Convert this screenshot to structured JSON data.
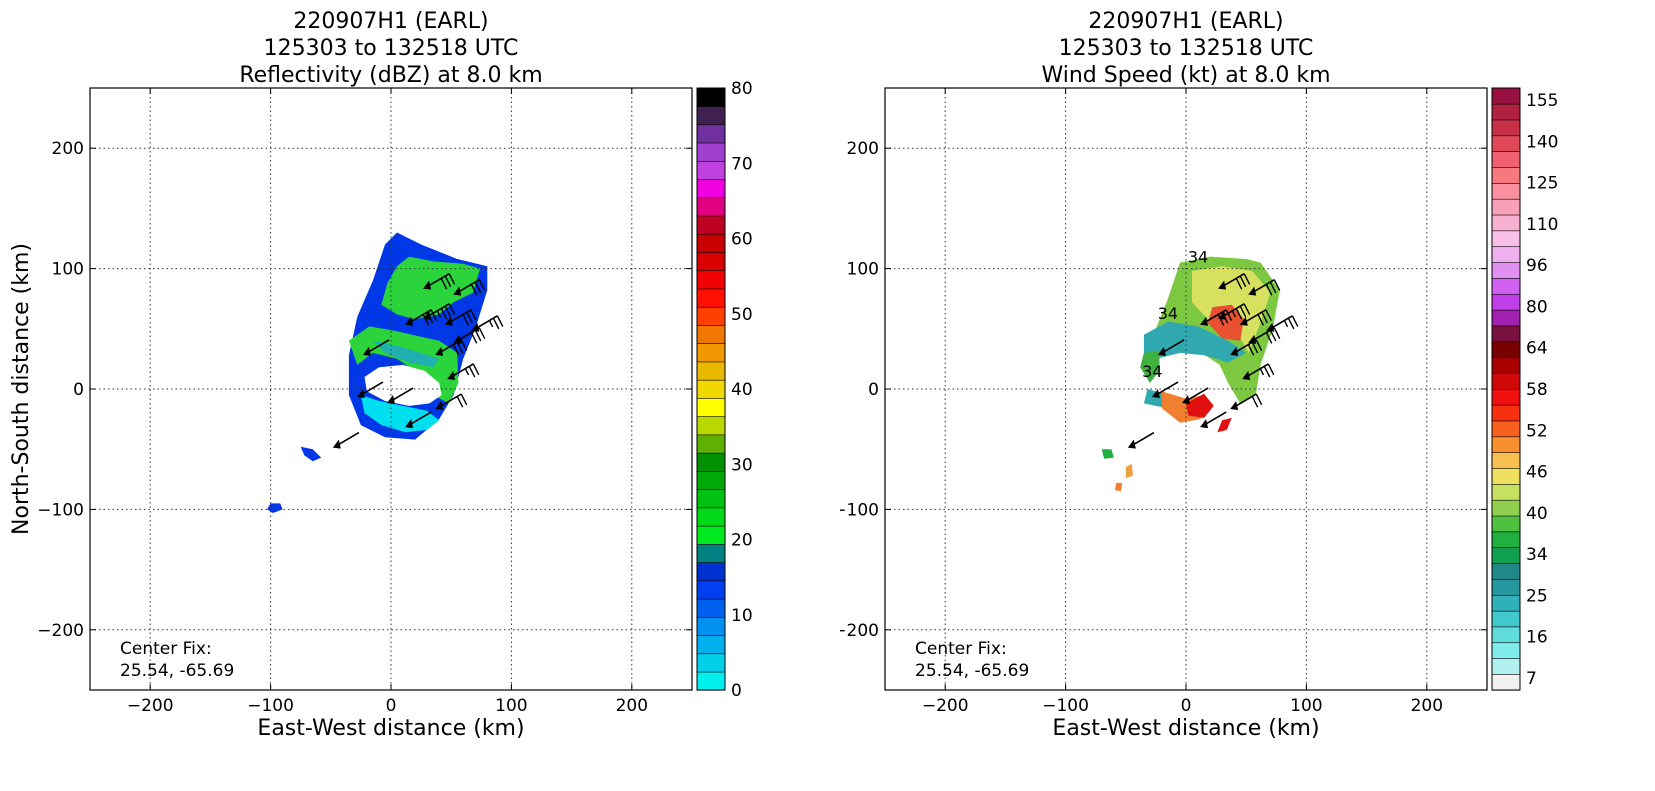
{
  "chart_data": [
    {
      "type": "heatmap",
      "title_lines": [
        "220907H1 (EARL)",
        "125303 to 132518 UTC",
        "Reflectivity (dBZ) at 8.0 km"
      ],
      "xlabel": "East-West distance (km)",
      "ylabel": "North-South distance (km)",
      "xlim": [
        -250,
        250
      ],
      "ylim": [
        -250,
        250
      ],
      "xticks": [
        -200,
        -100,
        0,
        100,
        200
      ],
      "yticks": [
        -200,
        -100,
        0,
        100,
        200
      ],
      "grid": true,
      "annotation_lines": [
        "Center Fix:",
        "25.54, -65.69"
      ],
      "colorbar": {
        "min": 0,
        "max": 80,
        "ticks": [
          0,
          10,
          20,
          30,
          40,
          50,
          60,
          70,
          80
        ],
        "colors": [
          "#00f0f0",
          "#00d0ea",
          "#00b0ee",
          "#0090ee",
          "#0060f0",
          "#0040f0",
          "#0030d0",
          "#008080",
          "#00ea20",
          "#00d818",
          "#00c010",
          "#00a808",
          "#009000",
          "#60b000",
          "#b8d800",
          "#ffff00",
          "#f0d800",
          "#e8b800",
          "#f09800",
          "#f07800",
          "#ff4000",
          "#ff1000",
          "#f00000",
          "#d80000",
          "#c80000",
          "#c00020",
          "#e00080",
          "#f000e0",
          "#c040e0",
          "#a040d0",
          "#7030a0",
          "#402050",
          "#000000"
        ]
      },
      "fields": [
        {
          "color": "#0038e8",
          "points": [
            [
              5,
              130
            ],
            [
              25,
              120
            ],
            [
              55,
              108
            ],
            [
              80,
              102
            ],
            [
              80,
              82
            ],
            [
              70,
              50
            ],
            [
              60,
              25
            ],
            [
              52,
              -5
            ],
            [
              40,
              -25
            ],
            [
              20,
              -42
            ],
            [
              -5,
              -40
            ],
            [
              -25,
              -30
            ],
            [
              -35,
              -5
            ],
            [
              -35,
              28
            ],
            [
              -28,
              60
            ],
            [
              -15,
              90
            ],
            [
              -5,
              120
            ]
          ]
        },
        {
          "color": "#2ad43a",
          "points": [
            [
              15,
              110
            ],
            [
              35,
              106
            ],
            [
              60,
              104
            ],
            [
              74,
              100
            ],
            [
              68,
              80
            ],
            [
              52,
              72
            ],
            [
              40,
              62
            ],
            [
              20,
              58
            ],
            [
              5,
              62
            ],
            [
              -8,
              70
            ],
            [
              -3,
              88
            ],
            [
              5,
              102
            ]
          ]
        },
        {
          "color": "#2ad43a",
          "points": [
            [
              -35,
              40
            ],
            [
              -18,
              52
            ],
            [
              5,
              48
            ],
            [
              22,
              44
            ],
            [
              40,
              40
            ],
            [
              55,
              30
            ],
            [
              56,
              5
            ],
            [
              48,
              -12
            ],
            [
              35,
              -5
            ],
            [
              25,
              12
            ],
            [
              5,
              25
            ],
            [
              -15,
              30
            ],
            [
              -28,
              20
            ]
          ]
        },
        {
          "color": "#00dff0",
          "points": [
            [
              -25,
              -5
            ],
            [
              -10,
              -10
            ],
            [
              10,
              -14
            ],
            [
              30,
              -18
            ],
            [
              40,
              -26
            ],
            [
              30,
              -34
            ],
            [
              12,
              -36
            ],
            [
              -8,
              -30
            ],
            [
              -22,
              -20
            ]
          ]
        },
        {
          "color": "#20b0b0",
          "points": [
            [
              -15,
              40
            ],
            [
              5,
              36
            ],
            [
              25,
              30
            ],
            [
              40,
              25
            ],
            [
              35,
              18
            ],
            [
              15,
              22
            ],
            [
              -5,
              30
            ]
          ]
        },
        {
          "color": "#ffffff",
          "points": [
            [
              -22,
              10
            ],
            [
              -10,
              18
            ],
            [
              10,
              20
            ],
            [
              28,
              15
            ],
            [
              40,
              5
            ],
            [
              42,
              -5
            ],
            [
              32,
              -12
            ],
            [
              15,
              -14
            ],
            [
              -5,
              -10
            ],
            [
              -20,
              -2
            ]
          ]
        },
        {
          "color": "#0038e8",
          "points": [
            [
              -100,
              -95
            ],
            [
              -92,
              -95
            ],
            [
              -90,
              -100
            ],
            [
              -98,
              -103
            ],
            [
              -103,
              -100
            ]
          ]
        },
        {
          "color": "#0038e8",
          "points": [
            [
              -75,
              -48
            ],
            [
              -65,
              -50
            ],
            [
              -58,
              -57
            ],
            [
              -65,
              -60
            ],
            [
              -72,
              -55
            ]
          ]
        }
      ],
      "barbs": [
        {
          "x": -45,
          "y": -47,
          "flags": 0,
          "full": 0,
          "half": 0
        },
        {
          "x": 15,
          "y": -30,
          "flags": 0,
          "full": 0,
          "half": 0
        },
        {
          "x": -25,
          "y": -5,
          "flags": 0,
          "full": 0,
          "half": 0
        },
        {
          "x": 0,
          "y": -10,
          "flags": 0,
          "full": 0,
          "half": 0
        },
        {
          "x": -20,
          "y": 30,
          "flags": 0,
          "full": 0,
          "half": 0
        },
        {
          "x": 15,
          "y": 55,
          "flags": 0,
          "full": 3,
          "half": 0
        },
        {
          "x": 30,
          "y": 60,
          "flags": 0,
          "full": 3,
          "half": 1
        },
        {
          "x": 48,
          "y": 55,
          "flags": 0,
          "full": 3,
          "half": 0
        },
        {
          "x": 55,
          "y": 40,
          "flags": 0,
          "full": 3,
          "half": 0
        },
        {
          "x": 70,
          "y": 50,
          "flags": 0,
          "full": 2,
          "half": 1
        },
        {
          "x": 40,
          "y": 30,
          "flags": 0,
          "full": 3,
          "half": 0
        },
        {
          "x": 50,
          "y": 10,
          "flags": 0,
          "full": 2,
          "half": 1
        },
        {
          "x": 40,
          "y": -15,
          "flags": 0,
          "full": 2,
          "half": 0
        },
        {
          "x": 30,
          "y": 85,
          "flags": 0,
          "full": 3,
          "half": 0
        },
        {
          "x": 55,
          "y": 80,
          "flags": 0,
          "full": 3,
          "half": 0
        }
      ]
    },
    {
      "type": "heatmap",
      "title_lines": [
        "220907H1 (EARL)",
        "125303 to 132518 UTC",
        "Wind Speed (kt) at 8.0 km"
      ],
      "xlabel": "East-West distance (km)",
      "ylabel": "North-South distance (km)",
      "xlim": [
        -250,
        250
      ],
      "ylim": [
        -250,
        250
      ],
      "xticks": [
        -200,
        -100,
        0,
        100,
        200
      ],
      "yticks": [
        -200,
        -100,
        0,
        100,
        200
      ],
      "grid": true,
      "annotation_lines": [
        "Center Fix:",
        "25.54, -65.69"
      ],
      "contour_labels": [
        {
          "x": 10,
          "y": 105,
          "text": "34"
        },
        {
          "x": -15,
          "y": 58,
          "text": "34"
        },
        {
          "x": -28,
          "y": 10,
          "text": "34"
        }
      ],
      "colorbar": {
        "ticks": [
          "7",
          "16",
          "25",
          "34",
          "40",
          "46",
          "52",
          "58",
          "64",
          "80",
          "96",
          "110",
          "125",
          "140",
          "155"
        ],
        "colors": [
          "#f0f0f0",
          "#b0f0f0",
          "#80ecec",
          "#60dcdc",
          "#40c8cc",
          "#30b0b8",
          "#2898a0",
          "#208888",
          "#10a050",
          "#20b040",
          "#50c040",
          "#90d050",
          "#c8e060",
          "#f0e060",
          "#f8c050",
          "#f89030",
          "#f86020",
          "#f83010",
          "#f01010",
          "#d00808",
          "#a80000",
          "#780000",
          "#781040",
          "#a020b0",
          "#c040e8",
          "#d060f0",
          "#e090f0",
          "#f0b0f0",
          "#f8c0e8",
          "#f8b0d0",
          "#f8a0b8",
          "#f890a0",
          "#f87880",
          "#f06070",
          "#e04858",
          "#c83048",
          "#b02040",
          "#981040"
        ]
      },
      "fields": [
        {
          "color": "#7cc840",
          "points": [
            [
              -5,
              105
            ],
            [
              20,
              110
            ],
            [
              50,
              108
            ],
            [
              62,
              105
            ],
            [
              78,
              82
            ],
            [
              72,
              50
            ],
            [
              62,
              20
            ],
            [
              58,
              -5
            ],
            [
              45,
              -12
            ],
            [
              35,
              5
            ],
            [
              28,
              20
            ],
            [
              10,
              32
            ],
            [
              -10,
              40
            ],
            [
              -25,
              50
            ],
            [
              -15,
              75
            ]
          ]
        },
        {
          "color": "#d8e060",
          "points": [
            [
              5,
              98
            ],
            [
              30,
              102
            ],
            [
              55,
              98
            ],
            [
              70,
              80
            ],
            [
              62,
              55
            ],
            [
              52,
              30
            ],
            [
              42,
              48
            ],
            [
              20,
              56
            ],
            [
              5,
              72
            ]
          ]
        },
        {
          "color": "#e85030",
          "points": [
            [
              22,
              68
            ],
            [
              38,
              70
            ],
            [
              48,
              58
            ],
            [
              45,
              40
            ],
            [
              30,
              42
            ],
            [
              18,
              55
            ]
          ]
        },
        {
          "color": "#30a8b0",
          "points": [
            [
              -35,
              45
            ],
            [
              -15,
              56
            ],
            [
              10,
              52
            ],
            [
              35,
              40
            ],
            [
              50,
              30
            ],
            [
              35,
              22
            ],
            [
              15,
              28
            ],
            [
              -5,
              30
            ],
            [
              -25,
              25
            ],
            [
              -35,
              30
            ]
          ]
        },
        {
          "color": "#40b040",
          "points": [
            [
              -35,
              30
            ],
            [
              -22,
              32
            ],
            [
              -22,
              15
            ],
            [
              -30,
              5
            ],
            [
              -38,
              18
            ]
          ]
        },
        {
          "color": "#30a8b0",
          "points": [
            [
              -32,
              0
            ],
            [
              -15,
              -5
            ],
            [
              -20,
              -15
            ],
            [
              -35,
              -12
            ]
          ]
        },
        {
          "color": "#f08030",
          "points": [
            [
              -20,
              -2
            ],
            [
              0,
              -8
            ],
            [
              15,
              -5
            ],
            [
              22,
              -14
            ],
            [
              12,
              -25
            ],
            [
              -5,
              -28
            ],
            [
              -20,
              -16
            ]
          ]
        },
        {
          "color": "#e01010",
          "points": [
            [
              0,
              -12
            ],
            [
              15,
              -4
            ],
            [
              23,
              -14
            ],
            [
              15,
              -24
            ],
            [
              2,
              -22
            ]
          ]
        },
        {
          "color": "#e01010",
          "points": [
            [
              30,
              -26
            ],
            [
              38,
              -24
            ],
            [
              34,
              -34
            ],
            [
              26,
              -36
            ]
          ]
        },
        {
          "color": "#20b040",
          "points": [
            [
              -70,
              -50
            ],
            [
              -62,
              -50
            ],
            [
              -60,
              -57
            ],
            [
              -68,
              -58
            ]
          ]
        },
        {
          "color": "#f0a040",
          "points": [
            [
              -50,
              -65
            ],
            [
              -45,
              -62
            ],
            [
              -44,
              -72
            ],
            [
              -50,
              -74
            ]
          ]
        },
        {
          "color": "#f08030",
          "points": [
            [
              -58,
              -78
            ],
            [
              -53,
              -78
            ],
            [
              -54,
              -85
            ],
            [
              -59,
              -84
            ]
          ]
        }
      ],
      "barbs": [
        {
          "x": -45,
          "y": -47,
          "flags": 0,
          "full": 0,
          "half": 0
        },
        {
          "x": 15,
          "y": -30,
          "flags": 0,
          "full": 0,
          "half": 0
        },
        {
          "x": -25,
          "y": -5,
          "flags": 0,
          "full": 0,
          "half": 0
        },
        {
          "x": 0,
          "y": -10,
          "flags": 0,
          "full": 0,
          "half": 0
        },
        {
          "x": -20,
          "y": 30,
          "flags": 0,
          "full": 0,
          "half": 0
        },
        {
          "x": 15,
          "y": 55,
          "flags": 0,
          "full": 3,
          "half": 0
        },
        {
          "x": 30,
          "y": 60,
          "flags": 0,
          "full": 3,
          "half": 1
        },
        {
          "x": 48,
          "y": 55,
          "flags": 0,
          "full": 3,
          "half": 0
        },
        {
          "x": 55,
          "y": 40,
          "flags": 0,
          "full": 3,
          "half": 0
        },
        {
          "x": 70,
          "y": 50,
          "flags": 0,
          "full": 2,
          "half": 1
        },
        {
          "x": 40,
          "y": 30,
          "flags": 0,
          "full": 3,
          "half": 0
        },
        {
          "x": 50,
          "y": 10,
          "flags": 0,
          "full": 2,
          "half": 1
        },
        {
          "x": 40,
          "y": -15,
          "flags": 0,
          "full": 2,
          "half": 0
        },
        {
          "x": 30,
          "y": 85,
          "flags": 0,
          "full": 3,
          "half": 0
        },
        {
          "x": 55,
          "y": 80,
          "flags": 0,
          "full": 3,
          "half": 0
        }
      ]
    }
  ]
}
